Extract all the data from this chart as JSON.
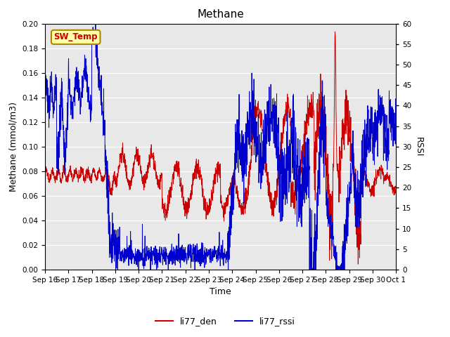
{
  "title": "Methane",
  "ylabel_left": "Methane (mmol/m3)",
  "ylabel_right": "RSSI",
  "xlabel": "Time",
  "ylim_left": [
    0.0,
    0.2
  ],
  "ylim_right": [
    0,
    60
  ],
  "yticks_left": [
    0.0,
    0.02,
    0.04,
    0.06,
    0.08,
    0.1,
    0.12,
    0.14,
    0.16,
    0.18,
    0.2
  ],
  "yticks_right": [
    0,
    5,
    10,
    15,
    20,
    25,
    30,
    35,
    40,
    45,
    50,
    55,
    60
  ],
  "xtick_labels": [
    "Sep 16",
    "Sep 17",
    "Sep 18",
    "Sep 19",
    "Sep 20",
    "Sep 21",
    "Sep 22",
    "Sep 23",
    "Sep 24",
    "Sep 25",
    "Sep 26",
    "Sep 27",
    "Sep 28",
    "Sep 29",
    "Sep 30",
    "Oct 1"
  ],
  "color_red": "#CC0000",
  "color_blue": "#0000CC",
  "legend_labels": [
    "li77_den",
    "li77_rssi"
  ],
  "sw_temp_bg": "#FFFFAA",
  "sw_temp_border": "#AA8800",
  "sw_temp_text": "#CC0000",
  "plot_bg": "#E8E8E8",
  "fig_bg": "#FFFFFF",
  "title_fontsize": 11,
  "axis_fontsize": 9,
  "tick_fontsize": 7.5
}
